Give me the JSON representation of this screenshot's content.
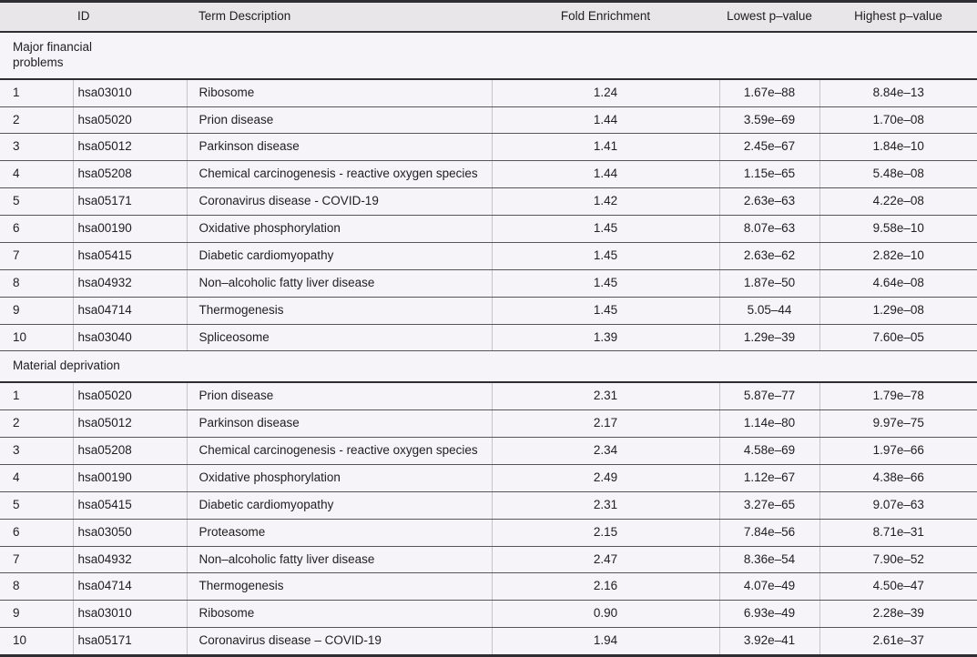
{
  "colors": {
    "body_background": "#f6f4f9",
    "header_background": "#e8e6e9",
    "rule_dark": "#2e2e32",
    "rule_row": "#55555a",
    "rule_column": "#c6c3ca",
    "text": "#202020"
  },
  "table": {
    "columns": {
      "rank": "",
      "id": "ID",
      "term": "Term Description",
      "fold": "Fold Enrichment",
      "lowest": "Lowest p–value",
      "highest": "Highest p–value"
    },
    "sections": [
      {
        "label": "Major financial problems",
        "rows": [
          [
            "1",
            "hsa03010",
            "Ribosome",
            "1.24",
            "1.67e–88",
            "8.84e–13"
          ],
          [
            "2",
            "hsa05020",
            "Prion disease",
            "1.44",
            "3.59e–69",
            "1.70e–08"
          ],
          [
            "3",
            "hsa05012",
            "Parkinson disease",
            "1.41",
            "2.45e–67",
            "1.84e–10"
          ],
          [
            "4",
            "hsa05208",
            "Chemical carcinogenesis - reactive oxygen species",
            "1.44",
            "1.15e–65",
            "5.48e–08"
          ],
          [
            "5",
            "hsa05171",
            "Coronavirus disease - COVID-19",
            "1.42",
            "2.63e–63",
            "4.22e–08"
          ],
          [
            "6",
            "hsa00190",
            "Oxidative phosphorylation",
            "1.45",
            "8.07e–63",
            "9.58e–10"
          ],
          [
            "7",
            "hsa05415",
            "Diabetic cardiomyopathy",
            "1.45",
            "2.63e–62",
            "2.82e–10"
          ],
          [
            "8",
            "hsa04932",
            "Non–alcoholic fatty liver disease",
            "1.45",
            "1.87e–50",
            "4.64e–08"
          ],
          [
            "9",
            "hsa04714",
            "Thermogenesis",
            "1.45",
            "5.05–44",
            "1.29e–08"
          ],
          [
            "10",
            "hsa03040",
            "Spliceosome",
            "1.39",
            "1.29e–39",
            "7.60e–05"
          ]
        ]
      },
      {
        "label": "Material deprivation",
        "rows": [
          [
            "1",
            "hsa05020",
            "Prion disease",
            "2.31",
            "5.87e–77",
            "1.79e–78"
          ],
          [
            "2",
            "hsa05012",
            "Parkinson disease",
            "2.17",
            "1.14e–80",
            "9.97e–75"
          ],
          [
            "3",
            "hsa05208",
            "Chemical carcinogenesis - reactive oxygen species",
            "2.34",
            "4.58e–69",
            "1.97e–66"
          ],
          [
            "4",
            "hsa00190",
            "Oxidative phosphorylation",
            "2.49",
            "1.12e–67",
            "4.38e–66"
          ],
          [
            "5",
            "hsa05415",
            "Diabetic cardiomyopathy",
            "2.31",
            "3.27e–65",
            "9.07e–63"
          ],
          [
            "6",
            "hsa03050",
            "Proteasome",
            "2.15",
            "7.84e–56",
            "8.71e–31"
          ],
          [
            "7",
            "hsa04932",
            "Non–alcoholic fatty liver disease",
            "2.47",
            "8.36e–54",
            "7.90e–52"
          ],
          [
            "8",
            "hsa04714",
            "Thermogenesis",
            "2.16",
            "4.07e–49",
            "4.50e–47"
          ],
          [
            "9",
            "hsa03010",
            "Ribosome",
            "0.90",
            "6.93e–49",
            "2.28e–39"
          ],
          [
            "10",
            "hsa05171",
            "Coronavirus disease – COVID-19",
            "1.94",
            "3.92e–41",
            "2.61e–37"
          ]
        ]
      }
    ]
  }
}
